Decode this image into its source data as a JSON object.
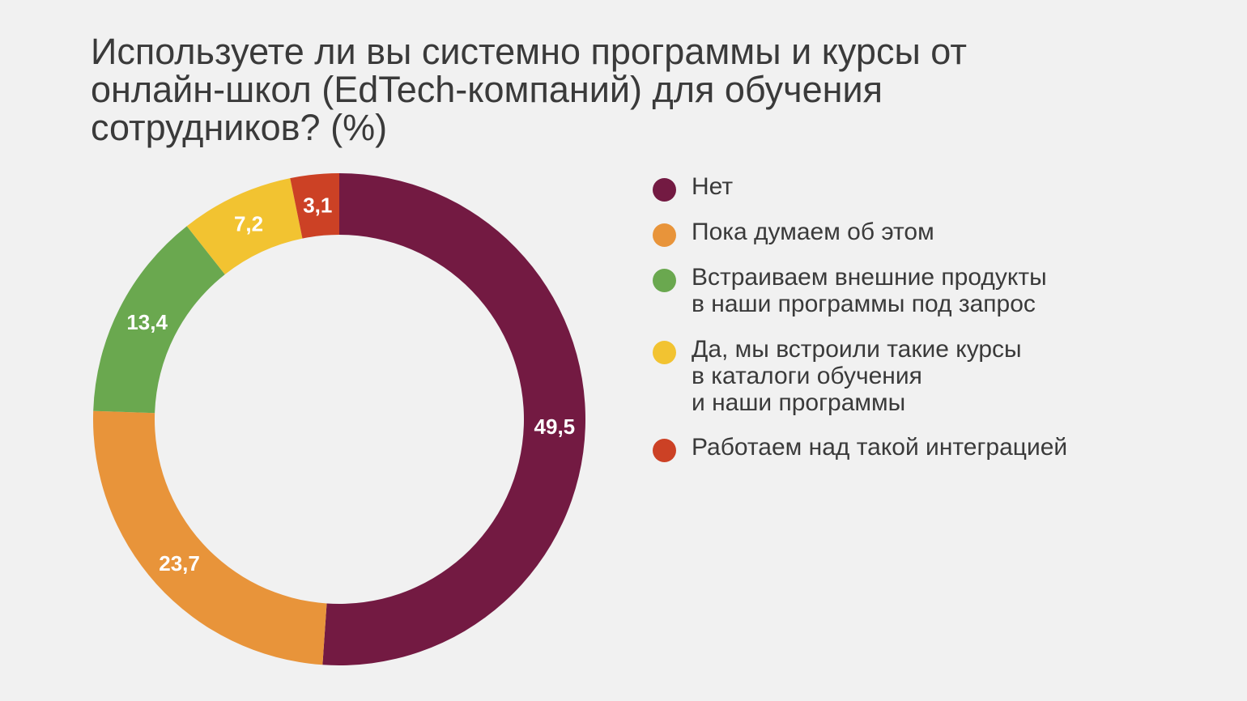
{
  "chart_data": {
    "type": "pie",
    "variant": "donut",
    "title": "Используете ли вы системно программы и курсы от\nонлайн-школ (EdTech-компаний) для обучения\nсотрудников? (%)",
    "unit": "%",
    "legend_position": "right",
    "slices": [
      {
        "label": "Нет",
        "value": 49.5,
        "value_label": "49,5",
        "color": "#731a42"
      },
      {
        "label": "Пока думаем об этом",
        "value": 23.7,
        "value_label": "23,7",
        "color": "#e8943a"
      },
      {
        "label": "Встраиваем внешние продукты\nв наши программы под запрос",
        "value": 13.4,
        "value_label": "13,4",
        "color": "#6aa84f"
      },
      {
        "label": "Да, мы встроили такие курсы\nв каталоги обучения\nи наши программы",
        "value": 7.2,
        "value_label": "7,2",
        "color": "#f2c331"
      },
      {
        "label": "Работаем над такой интеграцией",
        "value": 3.1,
        "value_label": "3,1",
        "color": "#cc4125"
      }
    ]
  }
}
